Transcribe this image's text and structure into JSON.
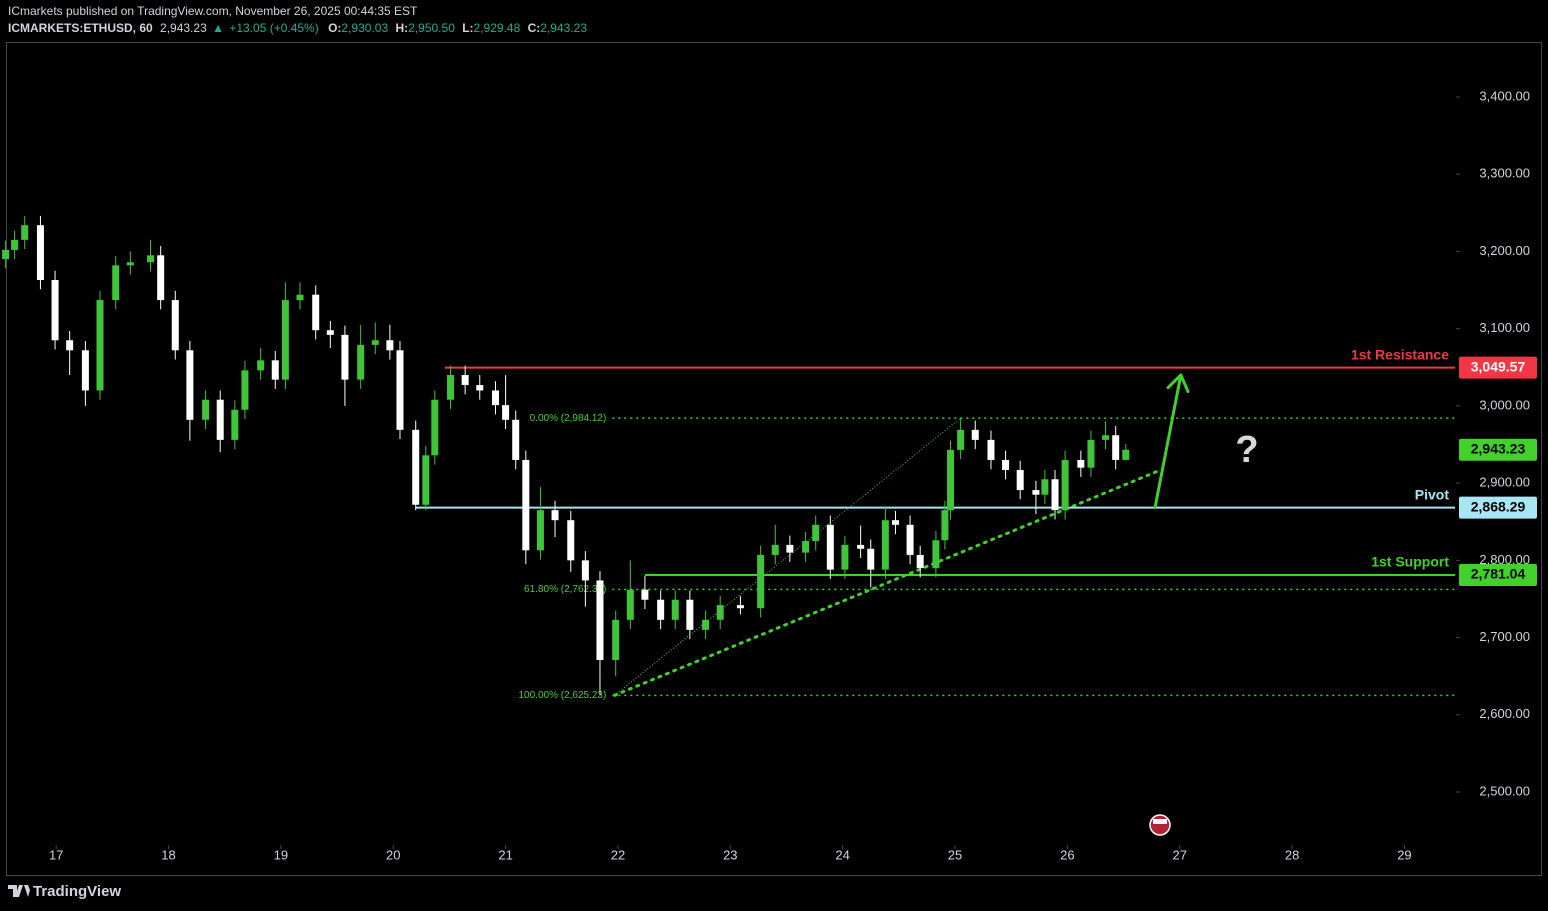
{
  "header": {
    "publisher": "ICmarkets published on TradingView.com, November 26, 2025 00:44:35 EST",
    "symbol": "ICMARKETS:ETHUSD, 60",
    "last": "2,943.23",
    "change": "+13.05 (+0.45%)",
    "ohlc": [
      {
        "label": "O:",
        "value": "2,930.03"
      },
      {
        "label": "H:",
        "value": "2,950.50"
      },
      {
        "label": "L:",
        "value": "2,929.48"
      },
      {
        "label": "C:",
        "value": "2,943.23"
      }
    ]
  },
  "footer": {
    "brand": "TradingView"
  },
  "chart_data": {
    "type": "candlestick",
    "up_color": "#3fc43a",
    "down_color": "#ffffff",
    "candles": {
      "x": [
        16.55,
        16.63,
        16.72,
        16.86,
        16.99,
        17.12,
        17.26,
        17.39,
        17.53,
        17.66,
        17.84,
        17.93,
        18.06,
        18.19,
        18.33,
        18.46,
        18.59,
        18.68,
        18.82,
        18.95,
        19.04,
        19.17,
        19.31,
        19.44,
        19.57,
        19.71,
        19.84,
        19.97,
        20.06,
        20.2,
        20.29,
        20.37,
        20.51,
        20.64,
        20.77,
        20.91,
        21.0,
        21.09,
        21.18,
        21.31,
        21.44,
        21.58,
        21.71,
        21.84,
        21.98,
        22.11,
        22.24,
        22.38,
        22.51,
        22.64,
        22.78,
        22.91,
        23.09,
        23.27,
        23.4,
        23.53,
        23.67,
        23.76,
        23.89,
        24.02,
        24.16,
        24.25,
        24.38,
        24.47,
        24.6,
        24.69,
        24.83,
        24.91,
        24.96,
        25.05,
        25.18,
        25.32,
        25.45,
        25.58,
        25.72,
        25.8,
        25.89,
        25.98,
        26.12,
        26.21,
        26.34,
        26.43,
        26.52
      ],
      "open": [
        3190,
        3202,
        3215,
        3234,
        3163,
        3085,
        3072,
        3020,
        3137,
        3182,
        3186,
        3195,
        3137,
        3072,
        2982,
        3008,
        2956,
        2995,
        3046,
        3059,
        3034,
        3137,
        3144,
        3098,
        3092,
        3034,
        3079,
        3085,
        3072,
        2969,
        2872,
        2936,
        3008,
        3040,
        3027,
        3020,
        3001,
        2982,
        2930,
        2813,
        2865,
        2852,
        2800,
        2774,
        2671,
        2723,
        2762,
        2749,
        2723,
        2749,
        2710,
        2723,
        2742,
        2738,
        2807,
        2820,
        2810,
        2825,
        2846,
        2788,
        2820,
        2815,
        2788,
        2852,
        2846,
        2807,
        2790,
        2826,
        2865,
        2943,
        2969,
        2956,
        2930,
        2917,
        2891,
        2885,
        2905,
        2865,
        2930,
        2920,
        2956,
        2962,
        2930.03
      ],
      "high": [
        3214,
        3227,
        3246,
        3246,
        3175,
        3097,
        3084,
        3149,
        3194,
        3200,
        3215,
        3207,
        3149,
        3084,
        3020,
        3020,
        3007,
        3058,
        3075,
        3071,
        3160,
        3160,
        3156,
        3110,
        3104,
        3105,
        3108,
        3105,
        3084,
        2981,
        2948,
        3020,
        3052,
        3052,
        3040,
        3032,
        3040,
        2994,
        2942,
        2895,
        2877,
        2864,
        2812,
        2786,
        2735,
        2800,
        2780,
        2761,
        2761,
        2761,
        2735,
        2754,
        2754,
        2819,
        2846,
        2832,
        2837,
        2858,
        2858,
        2832,
        2845,
        2827,
        2870,
        2864,
        2858,
        2819,
        2838,
        2877,
        2955,
        2985,
        2981,
        2968,
        2942,
        2929,
        2903,
        2917,
        2917,
        2942,
        2942,
        2968,
        2980,
        2974,
        2950.5
      ],
      "low": [
        3178,
        3190,
        3203,
        3151,
        3073,
        3040,
        3000,
        3008,
        3125,
        3170,
        3174,
        3125,
        3060,
        2955,
        2970,
        2940,
        2944,
        2983,
        3034,
        3022,
        3022,
        3125,
        3086,
        3075,
        3000,
        3022,
        3067,
        3060,
        2957,
        2865,
        2865,
        2924,
        2996,
        3015,
        3008,
        2989,
        2970,
        2918,
        2795,
        2801,
        2830,
        2785,
        2740,
        2625.23,
        2650,
        2711,
        2737,
        2711,
        2711,
        2698,
        2698,
        2711,
        2730,
        2726,
        2795,
        2798,
        2798,
        2813,
        2776,
        2776,
        2803,
        2765,
        2776,
        2834,
        2795,
        2778,
        2778,
        2814,
        2853,
        2931,
        2944,
        2918,
        2905,
        2879,
        2860,
        2873,
        2853,
        2853,
        2908,
        2908,
        2944,
        2918,
        2929.48
      ],
      "close": [
        3202,
        3215,
        3234,
        3163,
        3085,
        3072,
        3020,
        3137,
        3182,
        3186,
        3195,
        3137,
        3072,
        2982,
        3008,
        2956,
        2995,
        3046,
        3059,
        3034,
        3137,
        3144,
        3098,
        3092,
        3034,
        3079,
        3085,
        3072,
        2969,
        2872,
        2936,
        3008,
        3040,
        3027,
        3020,
        3001,
        2982,
        2930,
        2813,
        2865,
        2852,
        2800,
        2774,
        2671,
        2723,
        2762,
        2749,
        2723,
        2749,
        2710,
        2723,
        2742,
        2738,
        2807,
        2820,
        2810,
        2825,
        2846,
        2788,
        2820,
        2815,
        2788,
        2852,
        2846,
        2807,
        2790,
        2826,
        2865,
        2943,
        2969,
        2956,
        2930,
        2917,
        2891,
        2885,
        2905,
        2865,
        2930,
        2920,
        2956,
        2962,
        2930,
        2943.23
      ]
    },
    "xlim": [
      16.5,
      29.45
    ],
    "xticks": [
      17,
      18,
      19,
      20,
      21,
      22,
      23,
      24,
      25,
      26,
      27,
      28,
      29
    ],
    "ylim": [
      2431.4,
      3473.8
    ],
    "yticks": [
      {
        "value": 2500,
        "label": "2,500.00"
      },
      {
        "value": 2600,
        "label": "2,600.00"
      },
      {
        "value": 2700,
        "label": "2,700.00"
      },
      {
        "value": 2800,
        "label": "2,800.00"
      },
      {
        "value": 2900,
        "label": "2,900.00"
      },
      {
        "value": 3000,
        "label": "3,000.00"
      },
      {
        "value": 3100,
        "label": "3,100.00"
      },
      {
        "value": 3200,
        "label": "3,200.00"
      },
      {
        "value": 3300,
        "label": "3,300.00"
      },
      {
        "value": 3400,
        "label": "3,400.00"
      }
    ],
    "levels": [
      {
        "name": "1st Resistance",
        "value": 3049.57,
        "label": "3,049.57",
        "color": "#f23645",
        "text_color": "#ffffff",
        "start": 20.46
      },
      {
        "name": "Pivot",
        "value": 2868.29,
        "label": "2,868.29",
        "color": "#a8e6f5",
        "text_color": "#000000",
        "start": 20.2
      },
      {
        "name": "1st Support",
        "value": 2781.04,
        "label": "2,781.04",
        "color": "#41d12a",
        "text_color": "#000000",
        "start": 22.24
      }
    ],
    "fib_color": "#41d12a",
    "fib_start": 21.95,
    "fib": [
      {
        "label": "0.00% (2,984.12)",
        "value": 2984.12
      },
      {
        "label": "61.80% (2,762.33)",
        "value": 2762.33
      },
      {
        "label": "100.00% (2,625.23)",
        "value": 2625.23
      }
    ],
    "fib_diagonal": {
      "x": [
        21.97,
        25.05
      ],
      "y": [
        2625.23,
        2984.12
      ]
    },
    "trendline": {
      "x": [
        21.97,
        26.83
      ],
      "y": [
        2625.23,
        2917
      ]
    },
    "arrow": {
      "x": [
        26.78,
        27.01
      ],
      "y": [
        2868.29,
        3040
      ]
    },
    "current_price": {
      "value": 2943.23,
      "label": "2,943.23",
      "color": "#41d12a"
    },
    "annotation": "?"
  }
}
